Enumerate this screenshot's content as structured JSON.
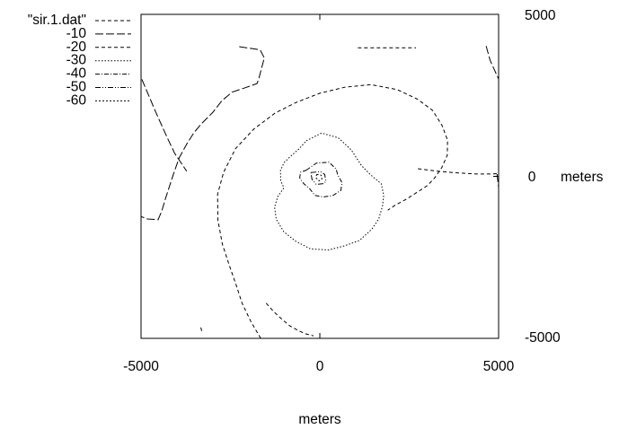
{
  "chart_data": {
    "type": "contour",
    "title": "",
    "xlabel": "meters",
    "ylabel": "meters",
    "ylabel_prefix": "0",
    "xlim": [
      -5000,
      5000
    ],
    "ylim": [
      -5000,
      5000
    ],
    "x_ticks": [
      {
        "value": -5000,
        "label": "-5000"
      },
      {
        "value": 0,
        "label": "0"
      },
      {
        "value": 5000,
        "label": "5000"
      }
    ],
    "y_ticks": [
      {
        "value": 5000,
        "label": "5000"
      },
      {
        "value": -5000,
        "label": "-5000"
      }
    ],
    "grid": false,
    "legend_position": "top-left, outside plot",
    "legend_title": "\"sir.1.dat\"",
    "series": [
      {
        "name": "-10",
        "dash": "9 3",
        "segments": [
          [
            [
              -4977,
              2994
            ],
            [
              -4570,
              1936
            ],
            [
              -4265,
              1185
            ],
            [
              -4061,
              713
            ],
            [
              -3723,
              159
            ]
          ],
          [
            [
              -2253,
              4004
            ],
            [
              -1670,
              3905
            ],
            [
              -1553,
              3657
            ],
            [
              -1702,
              3040
            ],
            [
              -1756,
              2865
            ],
            [
              -2091,
              2733
            ],
            [
              -2456,
              2597
            ],
            [
              -2734,
              2340
            ],
            [
              -3000,
              1967
            ],
            [
              -3306,
              1630
            ],
            [
              -3519,
              1349
            ],
            [
              -3707,
              1029
            ],
            [
              -3933,
              576
            ],
            [
              -4101,
              48
            ],
            [
              -4320,
              -696
            ],
            [
              -4423,
              -1077
            ],
            [
              -4526,
              -1338
            ],
            [
              -4824,
              -1315
            ],
            [
              -5000,
              -1240
            ]
          ],
          [
            [
              4652,
              4023
            ],
            [
              4765,
              3580
            ],
            [
              4957,
              3104
            ],
            [
              5000,
              3004
            ]
          ],
          [
            [
              4954,
              73
            ],
            [
              4980,
              -157
            ],
            [
              5000,
              -338
            ]
          ]
        ]
      },
      {
        "name": "-20",
        "dash": "4 3",
        "segments": [
          [
            [
              1062,
              3969
            ],
            [
              2688,
              3969
            ]
          ],
          [
            [
              -3304,
              -4773
            ],
            [
              -3339,
              -4615
            ]
          ],
          [
            [
              -1653,
              -5000
            ],
            [
              -1930,
              -4479
            ],
            [
              -2177,
              -3912
            ],
            [
              -2333,
              -3374
            ],
            [
              -2536,
              -2734
            ],
            [
              -2724,
              -2103
            ],
            [
              -2852,
              -1343
            ],
            [
              -2860,
              -552
            ],
            [
              -2690,
              124
            ],
            [
              -2360,
              854
            ],
            [
              -1849,
              1456
            ],
            [
              -1250,
              1956
            ],
            [
              -651,
              2288
            ],
            [
              0,
              2566
            ],
            [
              693,
              2751
            ],
            [
              1430,
              2830
            ],
            [
              2162,
              2679
            ],
            [
              2727,
              2386
            ],
            [
              3157,
              2033
            ],
            [
              3417,
              1574
            ],
            [
              3574,
              1116
            ],
            [
              3564,
              649
            ],
            [
              3414,
              276
            ],
            [
              3215,
              -41
            ],
            [
              3002,
              -289
            ],
            [
              2706,
              -501
            ],
            [
              2401,
              -714
            ],
            [
              2109,
              -889
            ],
            [
              1902,
              -1043
            ]
          ],
          [
            [
              2744,
              235
            ],
            [
              3214,
              169
            ],
            [
              3805,
              110
            ],
            [
              4388,
              73
            ],
            [
              4815,
              73
            ],
            [
              5000,
              89
            ]
          ],
          [
            [
              -1500,
              -3914
            ],
            [
              -1290,
              -4178
            ],
            [
              -1058,
              -4414
            ],
            [
              -838,
              -4615
            ],
            [
              -620,
              -4747
            ],
            [
              -418,
              -4854
            ],
            [
              -177,
              -4922
            ]
          ]
        ]
      },
      {
        "name": "-30",
        "dash": "1.5 2",
        "segments": [
          [
            [
              -380,
              1098
            ],
            [
              48,
              1334
            ],
            [
              514,
              1192
            ],
            [
              884,
              810
            ],
            [
              1161,
              339
            ],
            [
              1423,
              43
            ],
            [
              1717,
              -228
            ],
            [
              1786,
              -573
            ],
            [
              1755,
              -911
            ],
            [
              1651,
              -1304
            ],
            [
              1457,
              -1625
            ],
            [
              1112,
              -1976
            ],
            [
              685,
              -2147
            ],
            [
              249,
              -2272
            ],
            [
              -264,
              -2237
            ],
            [
              -683,
              -1998
            ],
            [
              -1010,
              -1705
            ],
            [
              -1218,
              -1326
            ],
            [
              -1266,
              -951
            ],
            [
              -1175,
              -620
            ],
            [
              -1006,
              -354
            ],
            [
              -1093,
              -136
            ],
            [
              -1101,
              179
            ],
            [
              -998,
              429
            ],
            [
              -798,
              636
            ],
            [
              -585,
              845
            ],
            [
              -380,
              1098
            ]
          ]
        ]
      },
      {
        "name": "-40",
        "dash": "5 2 1 2",
        "segments": [
          [
            [
              -380,
              190
            ],
            [
              -95,
              411
            ],
            [
              256,
              435
            ],
            [
              452,
              233
            ],
            [
              504,
              33
            ],
            [
              621,
              -193
            ],
            [
              588,
              -434
            ],
            [
              362,
              -593
            ],
            [
              97,
              -636
            ],
            [
              -139,
              -588
            ],
            [
              -287,
              -380
            ],
            [
              -453,
              -222
            ],
            [
              -564,
              -41
            ],
            [
              -537,
              128
            ],
            [
              -380,
              190
            ]
          ]
        ]
      },
      {
        "name": "-50",
        "dash": "6 2 1 2 1 2",
        "segments": [
          [
            [
              -248,
              117
            ],
            [
              19,
              147
            ],
            [
              135,
              61
            ],
            [
              170,
              -152
            ],
            [
              102,
              -225
            ],
            [
              -101,
              -247
            ],
            [
              -221,
              -84
            ],
            [
              -248,
              117
            ]
          ]
        ]
      },
      {
        "name": "-60",
        "dash": "2 2",
        "segments": [
          [
            [
              -85,
              64
            ],
            [
              41,
              33
            ],
            [
              57,
              -83
            ],
            [
              -22,
              -139
            ],
            [
              -111,
              -42
            ],
            [
              -85,
              64
            ]
          ]
        ]
      }
    ]
  }
}
